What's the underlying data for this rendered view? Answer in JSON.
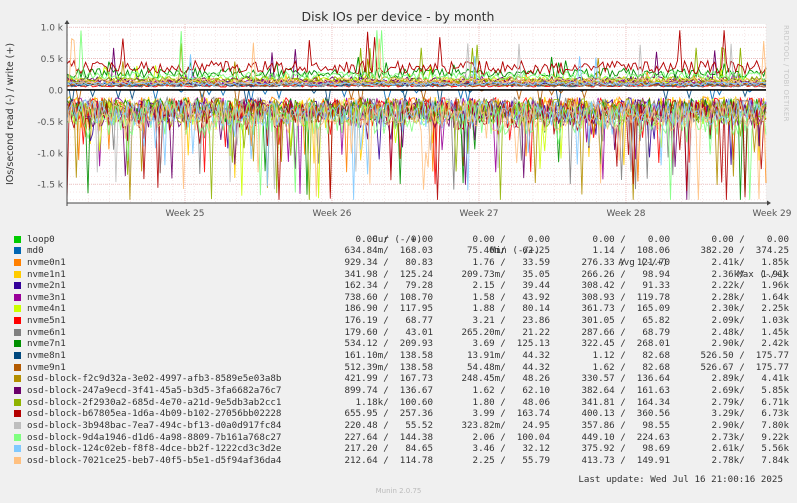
{
  "watermark": "RRDTOOL / TOBI OETIKER",
  "legend_headers": {
    "cur": "Cur (-/+)",
    "min": "Min (-/+)",
    "avg": "Avg (-/+)",
    "max": "Max (-/+)"
  },
  "footer": {
    "last_update": "Last update: Wed Jul 16 21:00:16 2025",
    "version": "Munin 2.0.75"
  },
  "chart_data": {
    "type": "line",
    "title": "Disk IOs per device - by month",
    "ylabel": "IOs/second read (-) / write (+)",
    "xlabel": "",
    "ylim": [
      -1.8,
      1.05
    ],
    "y_ticks": [
      {
        "value": 1.0,
        "label": "1.0 k"
      },
      {
        "value": 0.5,
        "label": "0.5 k"
      },
      {
        "value": 0.0,
        "label": "0.0"
      },
      {
        "value": -0.5,
        "label": "-0.5 k"
      },
      {
        "value": -1.0,
        "label": "-1.0 k"
      },
      {
        "value": -1.5,
        "label": "-1.5 k"
      }
    ],
    "x_ticks": [
      "Week 25",
      "Week 26",
      "Week 27",
      "Week 28",
      "Week 29"
    ],
    "grid": true,
    "series": [
      {
        "name": "loop0",
        "color": "#00cc00",
        "cur": "0.00 /    0.00",
        "min": "0.00 /    0.00",
        "avg": "0.00 /    0.00",
        "max": "0.00 /    0.00"
      },
      {
        "name": "md0",
        "color": "#0066b3",
        "cur": "634.84m/  168.03",
        "min": "75.46m/   62.25",
        "avg": "1.14 /  108.06",
        "max": "382.20 /  374.25"
      },
      {
        "name": "nvme0n1",
        "color": "#ff8000",
        "cur": "929.34 /   80.83",
        "min": "1.76 /   33.59",
        "avg": "276.33 /  121.70",
        "max": "2.41k/   1.85k"
      },
      {
        "name": "nvme1n1",
        "color": "#ffcc00",
        "cur": "341.98 /  125.24",
        "min": "209.73m/   35.05",
        "avg": "266.26 /   98.94",
        "max": "2.36k/   1.91k"
      },
      {
        "name": "nvme2n1",
        "color": "#330099",
        "cur": "162.34 /   79.28",
        "min": "2.15 /   39.44",
        "avg": "308.42 /   91.33",
        "max": "2.22k/   1.96k"
      },
      {
        "name": "nvme3n1",
        "color": "#990099",
        "cur": "738.60 /  108.70",
        "min": "1.58 /   43.92",
        "avg": "308.93 /  119.78",
        "max": "2.28k/   1.64k"
      },
      {
        "name": "nvme4n1",
        "color": "#ccff00",
        "cur": "186.90 /  117.95",
        "min": "1.88 /   80.14",
        "avg": "361.73 /  165.09",
        "max": "2.30k/   2.25k"
      },
      {
        "name": "nvme5n1",
        "color": "#ff0000",
        "cur": "176.19 /   68.77",
        "min": "3.21 /   23.86",
        "avg": "301.05 /   65.82",
        "max": "2.09k/   1.03k"
      },
      {
        "name": "nvme6n1",
        "color": "#808080",
        "cur": "179.60 /   43.01",
        "min": "265.20m/   21.22",
        "avg": "287.66 /   68.79",
        "max": "2.48k/   1.45k"
      },
      {
        "name": "nvme7n1",
        "color": "#008f00",
        "cur": "534.12 /  209.93",
        "min": "3.69 /  125.13",
        "avg": "322.45 /  268.01",
        "max": "2.90k/   2.42k"
      },
      {
        "name": "nvme8n1",
        "color": "#00487d",
        "cur": "161.10m/  138.58",
        "min": "13.91m/   44.32",
        "avg": "1.12 /   82.68",
        "max": "526.50 /  175.77"
      },
      {
        "name": "nvme9n1",
        "color": "#b35a00",
        "cur": "512.39m/  138.58",
        "min": "54.48m/   44.32",
        "avg": "1.62 /   82.68",
        "max": "526.67 /  175.77"
      },
      {
        "name": "osd-block-f2c9d32a-3e02-4997-afb3-8589e5e03a8b",
        "color": "#b38f00",
        "cur": "421.99 /  167.73",
        "min": "248.45m/   48.26",
        "avg": "330.57 /  136.64",
        "max": "2.89k/   4.41k"
      },
      {
        "name": "osd-block-247a9ecd-3f41-45a5-b3d5-3fa6682a76c7",
        "color": "#6b006b",
        "cur": "899.74 /  136.67",
        "min": "1.62 /   62.10",
        "avg": "382.64 /  161.63",
        "max": "2.69k/   5.85k"
      },
      {
        "name": "osd-block-2f2930a2-685d-4e70-a21d-9e5db3ab2cc1",
        "color": "#8fb300",
        "cur": "1.18k/  100.60",
        "min": "1.80 /   48.06",
        "avg": "341.81 /  164.34",
        "max": "2.79k/   6.71k"
      },
      {
        "name": "osd-block-b67805ea-1d6a-4b09-b102-27056bb02228",
        "color": "#b30000",
        "cur": "655.95 /  257.36",
        "min": "3.99 /  163.74",
        "avg": "400.13 /  360.56",
        "max": "3.29k/   6.73k"
      },
      {
        "name": "osd-block-3b948bac-7ea7-494c-bf13-d0a0d917fc84",
        "color": "#bebebe",
        "cur": "220.48 /   55.52",
        "min": "323.82m/   24.95",
        "avg": "357.86 /   98.55",
        "max": "2.90k/   7.80k"
      },
      {
        "name": "osd-block-9d4a1946-d1d6-4a98-8809-7b161a768c27",
        "color": "#80ff80",
        "cur": "227.64 /  144.38",
        "min": "2.06 /  100.04",
        "avg": "449.10 /  224.63",
        "max": "2.73k/   9.22k"
      },
      {
        "name": "osd-block-124c02eb-f8f8-4dce-bb2f-1222cd3c3d2e",
        "color": "#80c9ff",
        "cur": "217.20 /   84.65",
        "min": "3.46 /   32.12",
        "avg": "375.92 /   98.69",
        "max": "2.61k/   5.56k"
      },
      {
        "name": "osd-block-7021ce25-beb7-40f5-b5e1-d5f94af36da4",
        "color": "#ffc080",
        "cur": "212.64 /  114.78",
        "min": "2.25 /   55.79",
        "avg": "413.73 /  149.91",
        "max": "2.78k/   7.84k"
      }
    ]
  }
}
